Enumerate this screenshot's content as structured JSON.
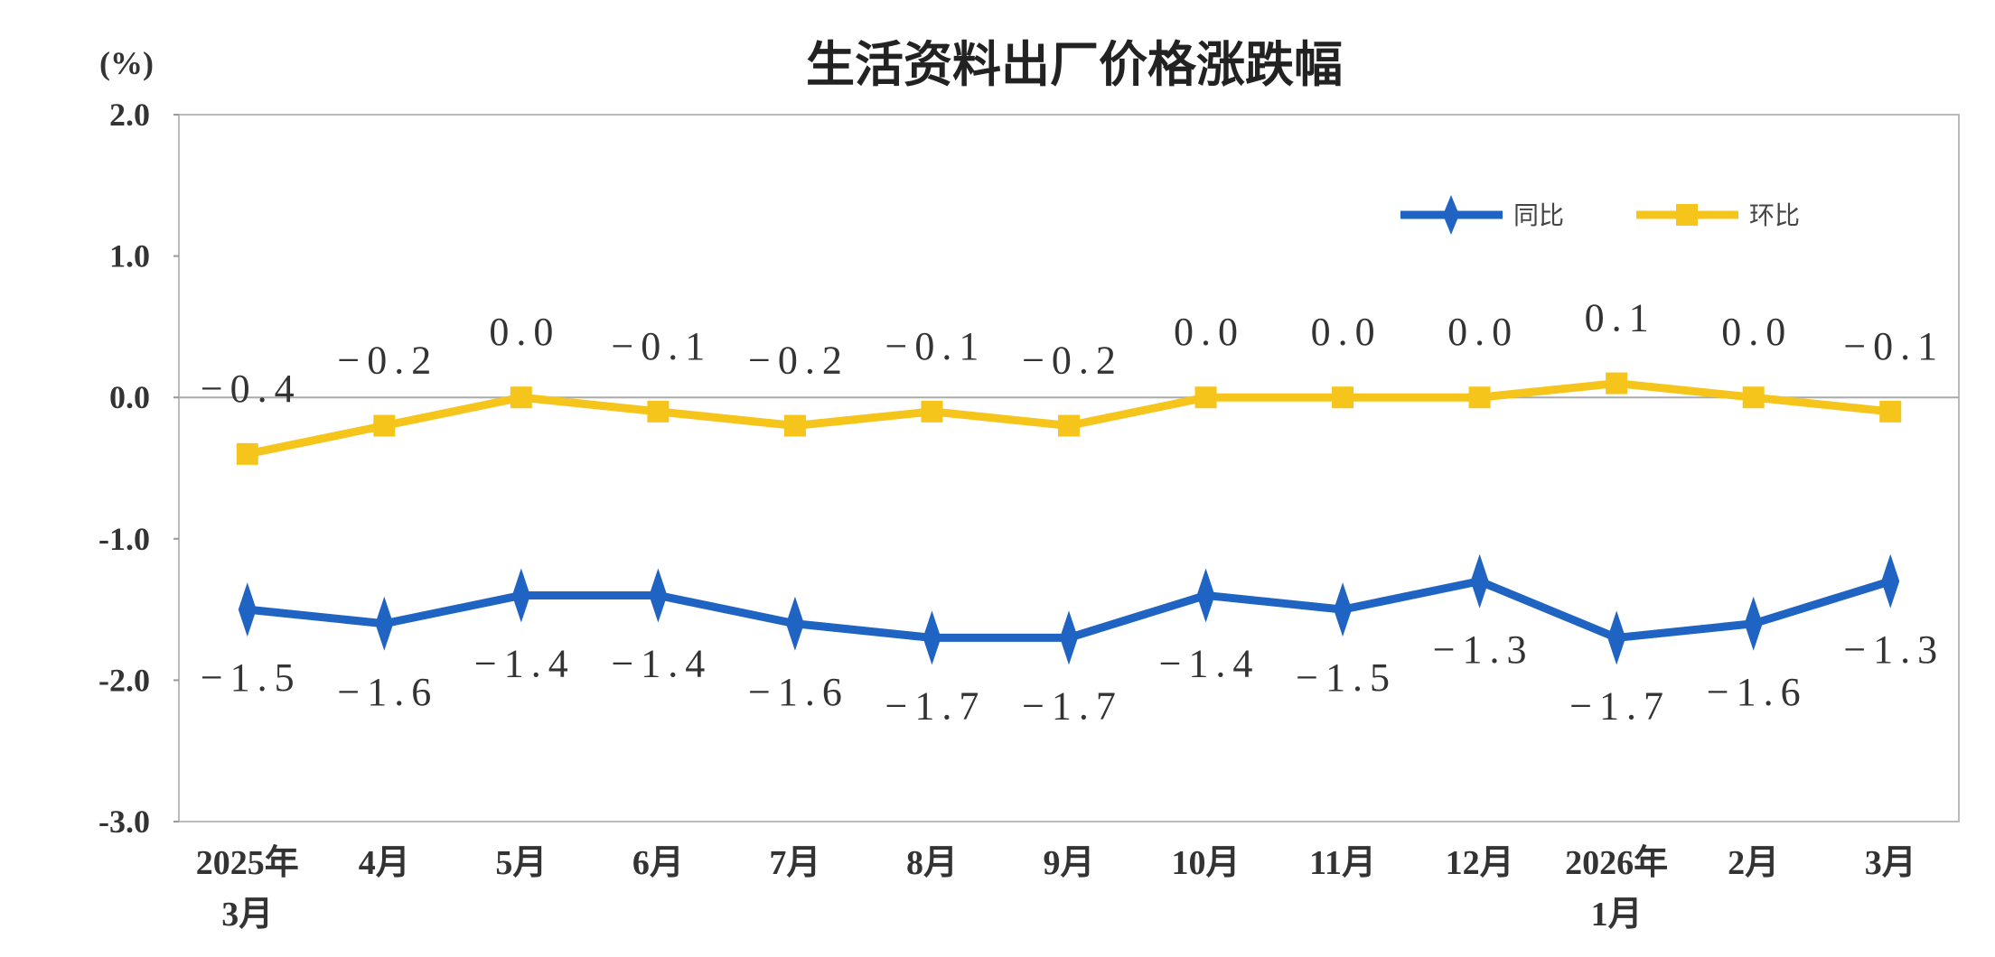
{
  "chart_data": {
    "type": "line",
    "title": "生活资料出厂价格涨跌幅",
    "ylabel": "(%)",
    "ylim": [
      -3.0,
      2.0
    ],
    "yticks": [
      "2.0",
      "1.0",
      "0.0",
      "-1.0",
      "-2.0",
      "-3.0"
    ],
    "grid": false,
    "legend_position": "top-right",
    "categories": [
      [
        "2025年",
        "3月"
      ],
      [
        "4月"
      ],
      [
        "5月"
      ],
      [
        "6月"
      ],
      [
        "7月"
      ],
      [
        "8月"
      ],
      [
        "9月"
      ],
      [
        "10月"
      ],
      [
        "11月"
      ],
      [
        "12月"
      ],
      [
        "2026年",
        "1月"
      ],
      [
        "2月"
      ],
      [
        "3月"
      ]
    ],
    "series": [
      {
        "name": "同比",
        "color": "#1f64c2",
        "marker": "diamond",
        "values": [
          -1.5,
          -1.6,
          -1.4,
          -1.4,
          -1.6,
          -1.7,
          -1.7,
          -1.4,
          -1.5,
          -1.3,
          -1.7,
          -1.6,
          -1.3
        ],
        "labels": [
          "−1.5",
          "−1.6",
          "−1.4",
          "−1.4",
          "−1.6",
          "−1.7",
          "−1.7",
          "−1.4",
          "−1.5",
          "−1.3",
          "−1.7",
          "−1.6",
          "−1.3"
        ],
        "label_position": "below"
      },
      {
        "name": "环比",
        "color": "#f5c51c",
        "marker": "square",
        "values": [
          -0.4,
          -0.2,
          0.0,
          -0.1,
          -0.2,
          -0.1,
          -0.2,
          0.0,
          0.0,
          0.0,
          0.1,
          0.0,
          -0.1
        ],
        "labels": [
          "−0.4",
          "−0.2",
          "0.0",
          "−0.1",
          "−0.2",
          "−0.1",
          "−0.2",
          "0.0",
          "0.0",
          "0.0",
          "0.1",
          "0.0",
          "−0.1"
        ],
        "label_position": "above"
      }
    ]
  }
}
